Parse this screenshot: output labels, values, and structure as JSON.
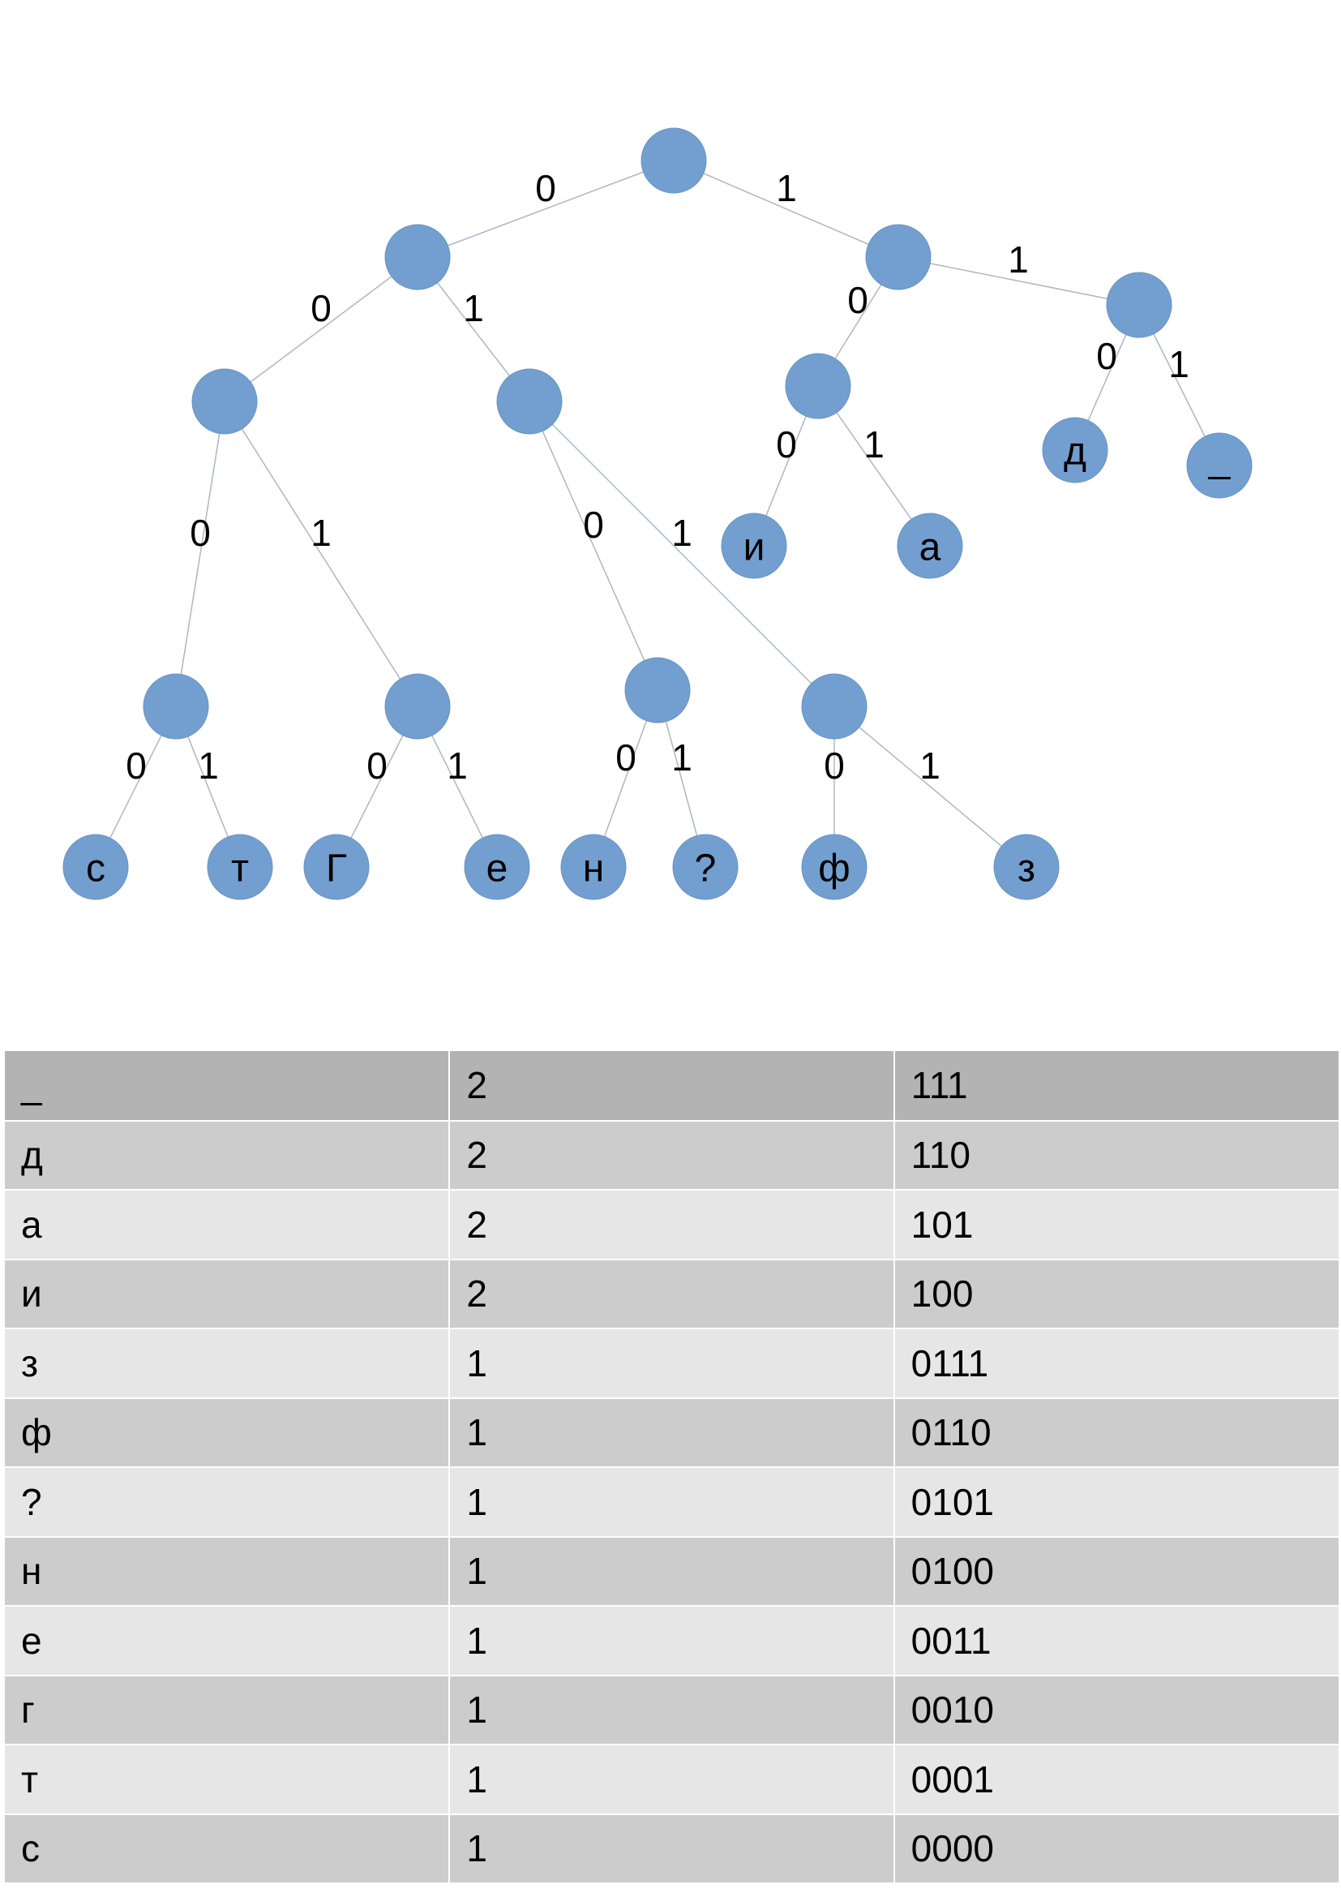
{
  "colors": {
    "node_fill": "#729fcf",
    "edge_stroke": "#a9b8c6",
    "table_header": "#b3b3b3",
    "table_row_dark": "#cccccc",
    "table_row_light": "#e6e6e6"
  },
  "tree": {
    "nodes": [
      {
        "id": "root",
        "label": ""
      },
      {
        "id": "n0",
        "label": ""
      },
      {
        "id": "n1",
        "label": ""
      },
      {
        "id": "n00",
        "label": ""
      },
      {
        "id": "n01",
        "label": ""
      },
      {
        "id": "n10",
        "label": ""
      },
      {
        "id": "n11",
        "label": ""
      },
      {
        "id": "n000",
        "label": ""
      },
      {
        "id": "n001",
        "label": ""
      },
      {
        "id": "n010",
        "label": ""
      },
      {
        "id": "n011",
        "label": ""
      },
      {
        "id": "leaf_i",
        "label": "и"
      },
      {
        "id": "leaf_a",
        "label": "а"
      },
      {
        "id": "leaf_d",
        "label": "д"
      },
      {
        "id": "leaf_space",
        "label": "_"
      },
      {
        "id": "leaf_s",
        "label": "с"
      },
      {
        "id": "leaf_t",
        "label": "т"
      },
      {
        "id": "leaf_g",
        "label": "Г"
      },
      {
        "id": "leaf_e",
        "label": "е"
      },
      {
        "id": "leaf_n",
        "label": "н"
      },
      {
        "id": "leaf_q",
        "label": "?"
      },
      {
        "id": "leaf_f",
        "label": "ф"
      },
      {
        "id": "leaf_z",
        "label": "з"
      }
    ],
    "edges": [
      {
        "from": "root",
        "to": "n0",
        "bit": "0"
      },
      {
        "from": "root",
        "to": "n1",
        "bit": "1"
      },
      {
        "from": "n0",
        "to": "n00",
        "bit": "0"
      },
      {
        "from": "n0",
        "to": "n01",
        "bit": "1"
      },
      {
        "from": "n1",
        "to": "n10",
        "bit": "0"
      },
      {
        "from": "n1",
        "to": "n11",
        "bit": "1"
      },
      {
        "from": "n10",
        "to": "leaf_i",
        "bit": "0"
      },
      {
        "from": "n10",
        "to": "leaf_a",
        "bit": "1"
      },
      {
        "from": "n11",
        "to": "leaf_d",
        "bit": "0"
      },
      {
        "from": "n11",
        "to": "leaf_space",
        "bit": "1"
      },
      {
        "from": "n00",
        "to": "n000",
        "bit": "0"
      },
      {
        "from": "n00",
        "to": "n001",
        "bit": "1"
      },
      {
        "from": "n01",
        "to": "n010",
        "bit": "0"
      },
      {
        "from": "n01",
        "to": "n011",
        "bit": "1"
      },
      {
        "from": "n000",
        "to": "leaf_s",
        "bit": "0"
      },
      {
        "from": "n000",
        "to": "leaf_t",
        "bit": "1"
      },
      {
        "from": "n001",
        "to": "leaf_g",
        "bit": "0"
      },
      {
        "from": "n001",
        "to": "leaf_e",
        "bit": "1"
      },
      {
        "from": "n010",
        "to": "leaf_n",
        "bit": "0"
      },
      {
        "from": "n010",
        "to": "leaf_q",
        "bit": "1"
      },
      {
        "from": "n011",
        "to": "leaf_f",
        "bit": "0"
      },
      {
        "from": "n011",
        "to": "leaf_z",
        "bit": "1"
      }
    ]
  },
  "table": {
    "rows": [
      {
        "symbol": "_",
        "count": "2",
        "code": "111"
      },
      {
        "symbol": "д",
        "count": "2",
        "code": "110"
      },
      {
        "symbol": "а",
        "count": "2",
        "code": "101"
      },
      {
        "symbol": "и",
        "count": "2",
        "code": "100"
      },
      {
        "symbol": "з",
        "count": "1",
        "code": "0111"
      },
      {
        "symbol": "ф",
        "count": "1",
        "code": "0110"
      },
      {
        "symbol": "?",
        "count": "1",
        "code": "0101"
      },
      {
        "symbol": "н",
        "count": "1",
        "code": "0100"
      },
      {
        "symbol": "е",
        "count": "1",
        "code": "0011"
      },
      {
        "symbol": "г",
        "count": "1",
        "code": "0010"
      },
      {
        "symbol": "т",
        "count": "1",
        "code": "0001"
      },
      {
        "symbol": "с",
        "count": "1",
        "code": "0000"
      }
    ]
  }
}
